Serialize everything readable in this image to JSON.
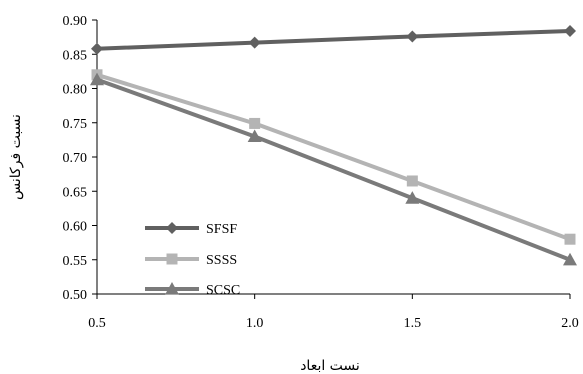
{
  "chart_data": {
    "type": "line",
    "title": "",
    "xlabel": "نست ابعاد",
    "ylabel": "نسبت فرکانس",
    "x": [
      0.5,
      1.0,
      1.5,
      2.0
    ],
    "x_tick_labels": [
      "0.5",
      "1.0",
      "1.5",
      "2.0"
    ],
    "xlim": [
      0.5,
      2.0
    ],
    "ylim": [
      0.5,
      0.9
    ],
    "y_ticks": [
      0.5,
      0.55,
      0.6,
      0.65,
      0.7,
      0.75,
      0.8,
      0.85,
      0.9
    ],
    "y_tick_labels": [
      "0.50",
      "0.55",
      "0.60",
      "0.65",
      "0.70",
      "0.75",
      "0.80",
      "0.85",
      "0.90"
    ],
    "grid": false,
    "legend_position": "bottom-left",
    "series": [
      {
        "name": "SFSF",
        "values": [
          0.858,
          0.867,
          0.876,
          0.884
        ],
        "color": "#606060",
        "marker": "diamond"
      },
      {
        "name": "SSSS",
        "values": [
          0.82,
          0.749,
          0.665,
          0.58
        ],
        "color": "#b4b4b4",
        "marker": "square"
      },
      {
        "name": "SCSC",
        "values": [
          0.813,
          0.73,
          0.64,
          0.55
        ],
        "color": "#7a7a7a",
        "marker": "triangle"
      }
    ]
  }
}
